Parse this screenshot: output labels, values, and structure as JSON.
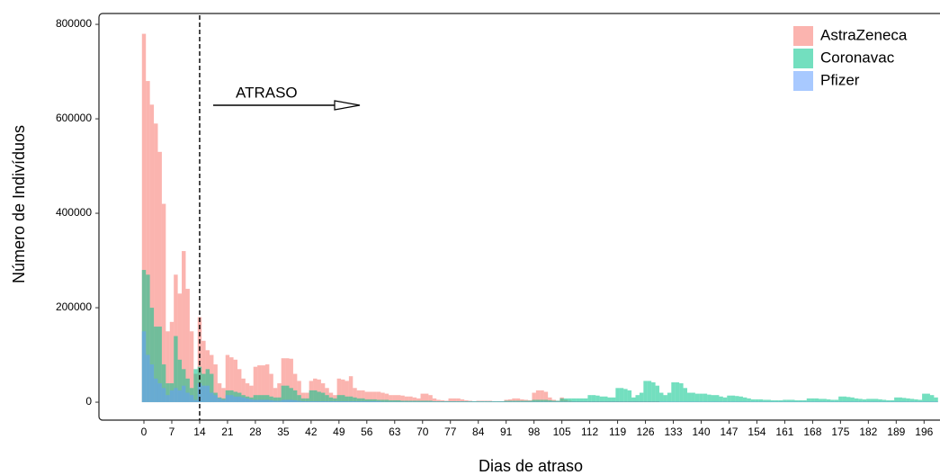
{
  "chart_data": {
    "type": "histogram",
    "x_label": "Dias de atraso",
    "y_label": "Número de Indivíduos",
    "annotation": "ATRASO",
    "vline": 14,
    "xlim": [
      -11.3,
      200
    ],
    "ylim": [
      -38000,
      823000
    ],
    "xticks": [
      0,
      7,
      14,
      21,
      28,
      35,
      42,
      49,
      56,
      63,
      70,
      77,
      84,
      91,
      98,
      105,
      112,
      119,
      126,
      133,
      140,
      147,
      154,
      161,
      168,
      175,
      182,
      189,
      196
    ],
    "yticks": [
      0,
      200000,
      400000,
      600000,
      800000
    ],
    "legend": "top-right",
    "x": [
      0,
      1,
      2,
      3,
      4,
      5,
      6,
      7,
      8,
      9,
      10,
      11,
      12,
      13,
      14,
      15,
      16,
      17,
      18,
      19,
      20,
      21,
      22,
      23,
      24,
      25,
      26,
      27,
      28,
      29,
      30,
      31,
      32,
      33,
      34,
      35,
      36,
      37,
      38,
      39,
      40,
      41,
      42,
      43,
      44,
      45,
      46,
      47,
      48,
      49,
      50,
      51,
      52,
      53,
      54,
      55,
      56,
      57,
      58,
      59,
      60,
      61,
      62,
      63,
      64,
      65,
      66,
      67,
      68,
      69,
      70,
      71,
      72,
      73,
      74,
      75,
      76,
      77,
      78,
      79,
      80,
      81,
      82,
      83,
      84,
      85,
      86,
      87,
      88,
      89,
      90,
      91,
      92,
      93,
      94,
      95,
      96,
      97,
      98,
      99,
      100,
      101,
      102,
      103,
      104,
      105,
      106,
      107,
      108,
      109,
      110,
      111,
      112,
      113,
      114,
      115,
      116,
      117,
      118,
      119,
      120,
      121,
      122,
      123,
      124,
      125,
      126,
      127,
      128,
      129,
      130,
      131,
      132,
      133,
      134,
      135,
      136,
      137,
      138,
      139,
      140,
      141,
      142,
      143,
      144,
      145,
      146,
      147,
      148,
      149,
      150,
      151,
      152,
      153,
      154,
      155,
      156,
      157,
      158,
      159,
      160,
      161,
      162,
      163,
      164,
      165,
      166,
      167,
      168,
      169,
      170,
      171,
      172,
      173,
      174,
      175,
      176,
      177,
      178,
      179,
      180,
      181,
      182,
      183,
      184,
      185,
      186,
      187,
      188,
      189,
      190,
      191,
      192,
      193,
      194,
      195,
      196,
      197,
      198,
      199
    ],
    "series": [
      {
        "name": "AstraZeneca",
        "color": "#F8766D",
        "values": [
          780000,
          680000,
          630000,
          590000,
          530000,
          420000,
          150000,
          170000,
          270000,
          230000,
          320000,
          240000,
          150000,
          60000,
          180000,
          130000,
          110000,
          100000,
          80000,
          40000,
          30000,
          100000,
          95000,
          90000,
          70000,
          50000,
          40000,
          35000,
          75000,
          78000,
          78000,
          80000,
          60000,
          30000,
          40000,
          93000,
          93000,
          92000,
          60000,
          45000,
          20000,
          20000,
          45000,
          50000,
          48000,
          40000,
          30000,
          20000,
          15000,
          50000,
          48000,
          45000,
          55000,
          30000,
          25000,
          25000,
          22000,
          22000,
          22000,
          22000,
          20000,
          18000,
          15000,
          15000,
          15000,
          14000,
          12000,
          12000,
          10000,
          8000,
          18000,
          18000,
          15000,
          8000,
          5000,
          4000,
          3000,
          8000,
          8000,
          8000,
          6000,
          4000,
          3000,
          2000,
          3000,
          3000,
          3000,
          3000,
          2000,
          2000,
          2000,
          5000,
          6000,
          8000,
          8000,
          6000,
          5000,
          4000,
          20000,
          25000,
          25000,
          22000,
          10000,
          5000,
          3000,
          10000,
          5000,
          3000,
          2000,
          2000,
          2000,
          2000,
          2000,
          2000,
          2000,
          2000,
          2000,
          2000,
          2000,
          2000,
          2000,
          2000,
          2000,
          2000,
          2000,
          2000,
          2000,
          2000,
          2000,
          2000,
          1000,
          1000,
          1000,
          1000,
          1000,
          1000,
          1000,
          1000,
          1000,
          1000,
          1000,
          1000,
          1000,
          1000,
          1000,
          1000,
          1000,
          1000,
          1000,
          1000,
          1000,
          1000,
          1000,
          1000,
          1000,
          1000,
          1000,
          1000,
          1000,
          1000,
          1000,
          1000,
          1000,
          1000,
          1000,
          1000,
          1000,
          1000,
          1000,
          1000,
          1000,
          1000,
          1000,
          1000,
          1000,
          1000,
          1000,
          1000,
          1000,
          1000,
          1000,
          1000,
          1000,
          1000,
          1000,
          1000,
          1000,
          1000,
          1000,
          1000,
          1000,
          1000,
          1000,
          1000,
          1000,
          1000,
          1000,
          1000,
          1000,
          1000
        ]
      },
      {
        "name": "Coronavac",
        "color": "#00C48A",
        "values": [
          280000,
          270000,
          200000,
          160000,
          160000,
          80000,
          40000,
          40000,
          140000,
          90000,
          70000,
          50000,
          30000,
          70000,
          75000,
          60000,
          70000,
          60000,
          20000,
          10000,
          8000,
          25000,
          25000,
          22000,
          20000,
          15000,
          12000,
          10000,
          15000,
          15000,
          15000,
          15000,
          12000,
          10000,
          10000,
          35000,
          35000,
          30000,
          25000,
          15000,
          8000,
          8000,
          25000,
          25000,
          22000,
          20000,
          15000,
          10000,
          8000,
          15000,
          15000,
          12000,
          12000,
          10000,
          8000,
          8000,
          6000,
          6000,
          6000,
          5000,
          5000,
          5000,
          4000,
          4000,
          4000,
          3000,
          3000,
          3000,
          3000,
          3000,
          3000,
          3000,
          3000,
          2000,
          2000,
          2000,
          2000,
          2000,
          2000,
          2000,
          2000,
          2000,
          2000,
          2000,
          2000,
          2000,
          2000,
          2000,
          2000,
          2000,
          2000,
          3000,
          3000,
          3000,
          3000,
          3000,
          3000,
          3000,
          5000,
          5000,
          5000,
          5000,
          4000,
          3000,
          3000,
          8000,
          8000,
          8000,
          8000,
          8000,
          8000,
          8000,
          15000,
          15000,
          14000,
          12000,
          12000,
          10000,
          10000,
          30000,
          30000,
          28000,
          25000,
          10000,
          15000,
          20000,
          45000,
          45000,
          42000,
          35000,
          20000,
          15000,
          20000,
          42000,
          42000,
          40000,
          30000,
          20000,
          20000,
          18000,
          18000,
          18000,
          16000,
          15000,
          15000,
          12000,
          10000,
          14000,
          14000,
          13000,
          12000,
          10000,
          8000,
          6000,
          6000,
          6000,
          5000,
          5000,
          4000,
          4000,
          4000,
          5000,
          5000,
          5000,
          4000,
          4000,
          4000,
          8000,
          8000,
          8000,
          7000,
          7000,
          6000,
          5000,
          5000,
          12000,
          12000,
          11000,
          10000,
          8000,
          7000,
          6000,
          7000,
          7000,
          7000,
          6000,
          5000,
          4000,
          4000,
          10000,
          10000,
          9000,
          8000,
          7000,
          6000,
          5000,
          18000,
          18000,
          15000,
          10000
        ]
      },
      {
        "name": "Pfizer",
        "color": "#619CFF",
        "values": [
          150000,
          100000,
          80000,
          50000,
          40000,
          30000,
          15000,
          25000,
          30000,
          25000,
          35000,
          20000,
          15000,
          5000,
          40000,
          35000,
          35000,
          20000,
          15000,
          8000,
          5000,
          15000,
          15000,
          12000,
          12000,
          10000,
          8000,
          6000,
          5000,
          5000,
          5000,
          5000,
          4000,
          3000,
          3000,
          5000,
          5000,
          5000,
          4000,
          3000,
          2000,
          2000,
          2000,
          2000,
          2000,
          2000,
          2000,
          2000,
          2000,
          2000,
          2000,
          2000,
          2000,
          2000,
          2000,
          2000,
          2000,
          2000,
          2000,
          2000,
          1000,
          1000,
          1000,
          1000,
          1000,
          1000,
          1000,
          1000,
          1000,
          1000,
          1000,
          1000,
          1000,
          1000,
          1000,
          1000,
          1000,
          1000,
          1000,
          1000,
          1000,
          1000,
          1000,
          1000,
          1000,
          1000,
          1000,
          1000,
          1000,
          1000,
          1000,
          1000,
          1000,
          1000,
          1000,
          1000,
          1000,
          1000,
          1000,
          1000,
          1000,
          1000,
          1000,
          1000,
          1000,
          1000,
          1000,
          1000,
          1000,
          1000,
          1000,
          1000,
          1000,
          1000,
          1000,
          1000,
          1000,
          1000,
          1000,
          1000,
          1000,
          1000,
          1000,
          1000,
          1000,
          1000,
          1000,
          1000,
          1000,
          1000,
          1000,
          1000,
          1000,
          1000,
          1000,
          1000,
          1000,
          1000,
          1000,
          1000,
          1000,
          1000,
          1000,
          1000,
          1000,
          1000,
          1000,
          1000,
          1000,
          1000,
          1000,
          1000,
          1000,
          1000,
          1000,
          1000,
          1000,
          1000,
          1000,
          1000,
          1000,
          1000,
          1000,
          1000,
          1000,
          1000,
          1000,
          1000,
          1000,
          1000,
          1000,
          1000,
          1000,
          1000,
          1000,
          1000,
          1000,
          1000,
          1000,
          1000,
          1000,
          1000,
          1000,
          1000,
          1000,
          1000,
          1000,
          1000,
          1000,
          1000,
          1000,
          1000,
          1000,
          1000,
          1000,
          1000,
          1000,
          1000,
          1000,
          1000
        ]
      }
    ]
  }
}
